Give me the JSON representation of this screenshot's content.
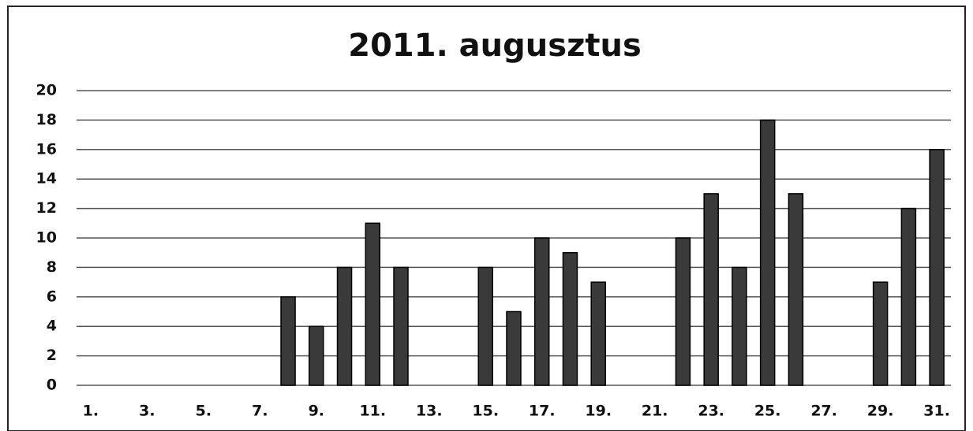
{
  "chart_data": {
    "type": "bar",
    "title": "2011. augusztus",
    "categories": [
      "1.",
      null,
      "3.",
      null,
      "5.",
      null,
      "7.",
      null,
      "9.",
      null,
      "11.",
      null,
      "13.",
      null,
      "15.",
      null,
      "17.",
      null,
      "19.",
      null,
      "21.",
      null,
      "23.",
      null,
      "25.",
      null,
      "27.",
      null,
      "29.",
      null,
      "31."
    ],
    "values": [
      0,
      0,
      0,
      0,
      0,
      0,
      0,
      6,
      4,
      8,
      11,
      8,
      0,
      0,
      8,
      5,
      10,
      9,
      7,
      0,
      0,
      10,
      13,
      8,
      18,
      13,
      0,
      0,
      7,
      12,
      16
    ],
    "color": "#3a3a3a",
    "ylim": [
      0,
      20
    ],
    "yticks": [
      0,
      2,
      4,
      6,
      8,
      10,
      12,
      14,
      16,
      18,
      20
    ],
    "grid": true
  }
}
